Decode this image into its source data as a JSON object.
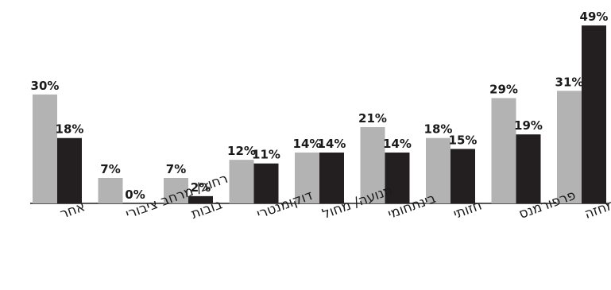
{
  "chart_data": {
    "type": "bar",
    "title": "",
    "xlabel": "",
    "ylabel": "",
    "ylim": [
      0,
      50
    ],
    "grid": false,
    "legend": "none",
    "categories": [
      "אחר",
      "רחוב/ מרחב ציבורי",
      "בובות",
      "דוקומנטרי",
      "תנועה/ מחול",
      "בינתחומי",
      "חזותי",
      "פרפורמנס",
      "מבוסס מחזה"
    ],
    "series": [
      {
        "color": "#b3b3b3",
        "values": [
          30,
          7,
          7,
          12,
          14,
          21,
          18,
          29,
          31
        ],
        "labels": [
          "30%",
          "7%",
          "7%",
          "12%",
          "14%",
          "21%",
          "18%",
          "29%",
          "31%"
        ]
      },
      {
        "color": "#231f20",
        "values": [
          18,
          0,
          2,
          11,
          14,
          14,
          15,
          19,
          49
        ],
        "labels": [
          "18%",
          "0%",
          "2%",
          "11%",
          "14%",
          "14%",
          "15%",
          "19%",
          "49%"
        ]
      }
    ]
  }
}
